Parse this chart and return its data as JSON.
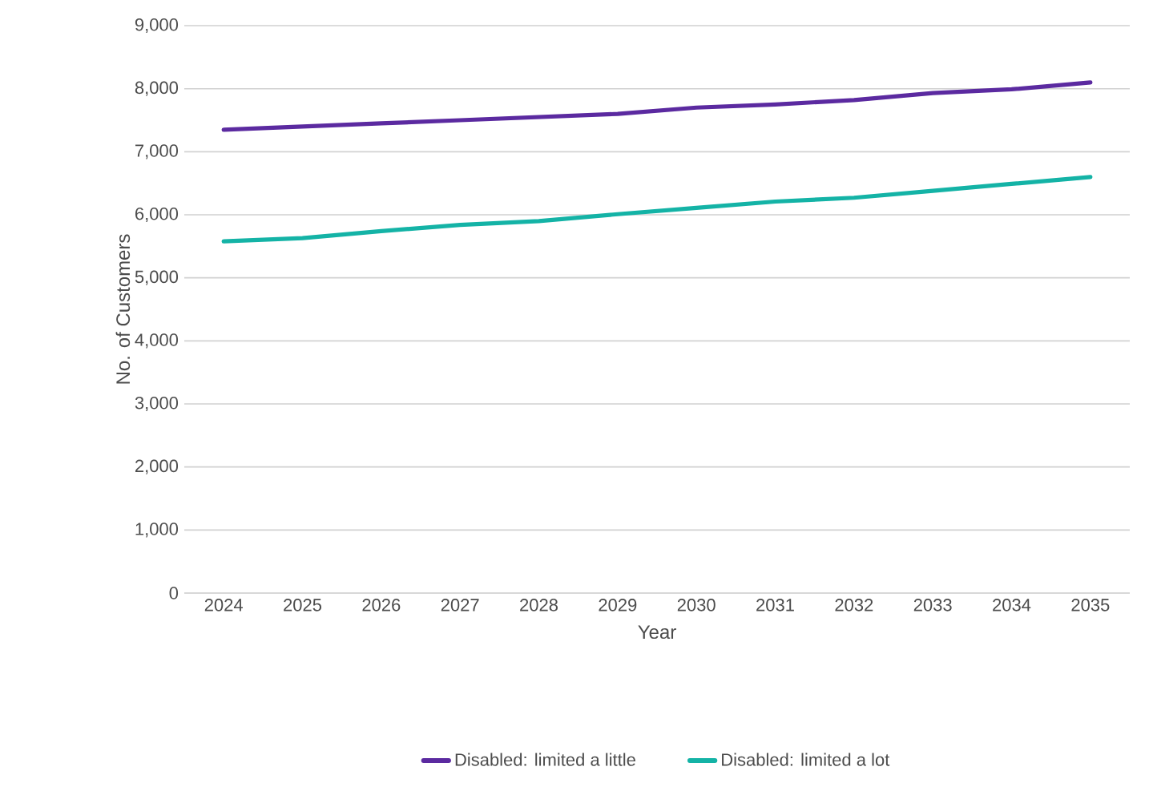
{
  "chart_data": {
    "type": "line",
    "xlabel": "Year",
    "ylabel": "No. of Customers",
    "categories": [
      "2024",
      "2025",
      "2026",
      "2027",
      "2028",
      "2029",
      "2030",
      "2031",
      "2032",
      "2033",
      "2034",
      "2035"
    ],
    "series": [
      {
        "name": "Disabled: limited a little",
        "color": "#5b2aa0",
        "values": [
          7350,
          7400,
          7450,
          7500,
          7550,
          7600,
          7700,
          7750,
          7820,
          7930,
          7990,
          8100
        ]
      },
      {
        "name": "Disabled: limited a lot",
        "color": "#14b3a6",
        "values": [
          5580,
          5630,
          5740,
          5840,
          5900,
          6010,
          6110,
          6210,
          6270,
          6380,
          6490,
          6600
        ]
      }
    ],
    "ylim": [
      0,
      9000
    ],
    "yticks": [
      {
        "value": 0,
        "label": "0"
      },
      {
        "value": 1000,
        "label": "1,000"
      },
      {
        "value": 2000,
        "label": "2,000"
      },
      {
        "value": 3000,
        "label": "3,000"
      },
      {
        "value": 4000,
        "label": "4,000"
      },
      {
        "value": 5000,
        "label": "5,000"
      },
      {
        "value": 6000,
        "label": "6,000"
      },
      {
        "value": 7000,
        "label": "7,000"
      },
      {
        "value": 8000,
        "label": "8,000"
      },
      {
        "value": 9000,
        "label": "9,000"
      }
    ],
    "grid": "y",
    "legend": "bottom",
    "marker": "none",
    "line_style": "solid"
  }
}
